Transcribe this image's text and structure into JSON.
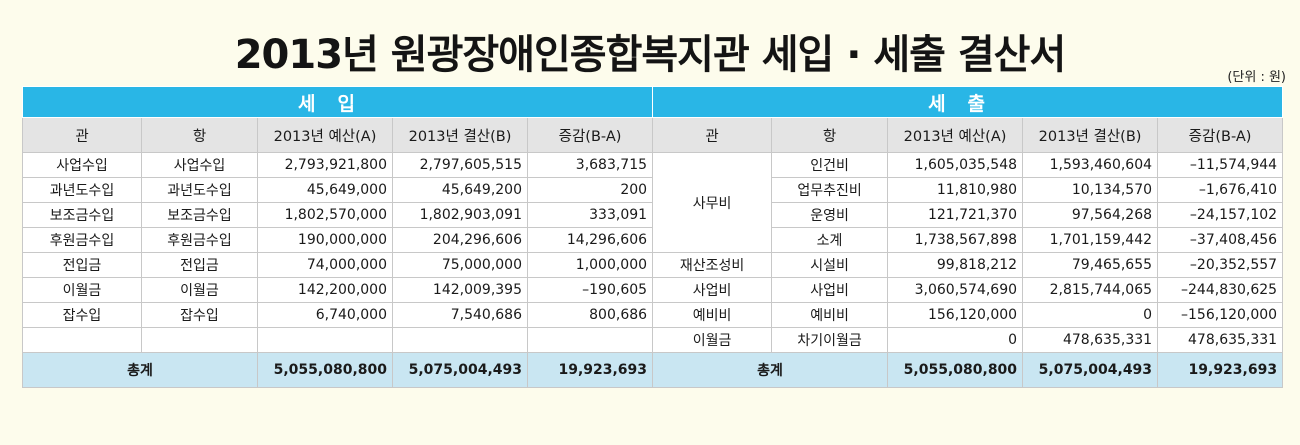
{
  "title": "2013년 원광장애인종합복지관 세입 · 세출 결산서",
  "unit": "(단위 : 원)",
  "income": {
    "section_label": "세입",
    "headers": [
      "관",
      "항",
      "2013년 예산(A)",
      "2013년 결산(B)",
      "증감(B-A)"
    ],
    "rows": [
      [
        "사업수입",
        "사업수입",
        "2,793,921,800",
        "2,797,605,515",
        "3,683,715"
      ],
      [
        "과년도수입",
        "과년도수입",
        "45,649,000",
        "45,649,200",
        "200"
      ],
      [
        "보조금수입",
        "보조금수입",
        "1,802,570,000",
        "1,802,903,091",
        "333,091"
      ],
      [
        "후원금수입",
        "후원금수입",
        "190,000,000",
        "204,296,606",
        "14,296,606"
      ],
      [
        "전입금",
        "전입금",
        "74,000,000",
        "75,000,000",
        "1,000,000"
      ],
      [
        "이월금",
        "이월금",
        "142,200,000",
        "142,009,395",
        "–190,605"
      ],
      [
        "잡수입",
        "잡수입",
        "6,740,000",
        "7,540,686",
        "800,686"
      ],
      [
        "",
        "",
        "",
        "",
        ""
      ]
    ],
    "total": {
      "label": "총계",
      "budget": "5,055,080,800",
      "settled": "5,075,004,493",
      "diff": "19,923,693"
    }
  },
  "expense": {
    "section_label": "세출",
    "headers": [
      "관",
      "항",
      "2013년 예산(A)",
      "2013년 결산(B)",
      "증감(B-A)"
    ],
    "gwan": [
      "사무비",
      "재산조성비",
      "사업비",
      "예비비",
      "이월금"
    ],
    "rows": [
      [
        "인건비",
        "1,605,035,548",
        "1,593,460,604",
        "–11,574,944"
      ],
      [
        "업무추진비",
        "11,810,980",
        "10,134,570",
        "–1,676,410"
      ],
      [
        "운영비",
        "121,721,370",
        "97,564,268",
        "–24,157,102"
      ],
      [
        "소계",
        "1,738,567,898",
        "1,701,159,442",
        "–37,408,456"
      ],
      [
        "시설비",
        "99,818,212",
        "79,465,655",
        "–20,352,557"
      ],
      [
        "사업비",
        "3,060,574,690",
        "2,815,744,065",
        "–244,830,625"
      ],
      [
        "예비비",
        "156,120,000",
        "0",
        "–156,120,000"
      ],
      [
        "차기이월금",
        "0",
        "478,635,331",
        "478,635,331"
      ]
    ],
    "total": {
      "label": "총계",
      "budget": "5,055,080,800",
      "settled": "5,075,004,493",
      "diff": "19,923,693"
    }
  }
}
